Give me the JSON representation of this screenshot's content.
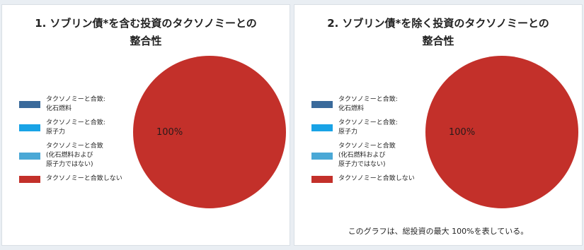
{
  "colors": {
    "fossil": "#3a6a9b",
    "nuclear": "#19a3e6",
    "other": "#4aa8d6",
    "not_aligned": "#c3302a"
  },
  "chart_data": [
    {
      "type": "pie",
      "title": "1. ソブリン債*を含む投資のタクソノミーとの\n整合性",
      "categories": [
        "タクソノミーと合致:\n化石燃料",
        "タクソノミーと合致:\n原子力",
        "タクソノミーと合致\n(化石燃料および\n原子力ではない)",
        "タクソノミーと合致しない"
      ],
      "colors": [
        "#3a6a9b",
        "#19a3e6",
        "#4aa8d6",
        "#c3302a"
      ],
      "values": [
        0,
        0,
        0,
        100
      ],
      "data_labels": [
        "",
        "",
        "",
        "100%"
      ],
      "legend_position": "left"
    },
    {
      "type": "pie",
      "title": "2. ソブリン債*を除く投資のタクソノミーとの\n整合性",
      "categories": [
        "タクソノミーと合致:\n化石燃料",
        "タクソノミーと合致:\n原子力",
        "タクソノミーと合致\n(化石燃料および\n原子力ではない)",
        "タクソノミーと合致しない"
      ],
      "colors": [
        "#3a6a9b",
        "#19a3e6",
        "#4aa8d6",
        "#c3302a"
      ],
      "values": [
        0,
        0,
        0,
        100
      ],
      "data_labels": [
        "",
        "",
        "",
        "100%"
      ],
      "legend_position": "left",
      "footnote": "このグラフは、総投資の最大 100%を表している。"
    }
  ]
}
